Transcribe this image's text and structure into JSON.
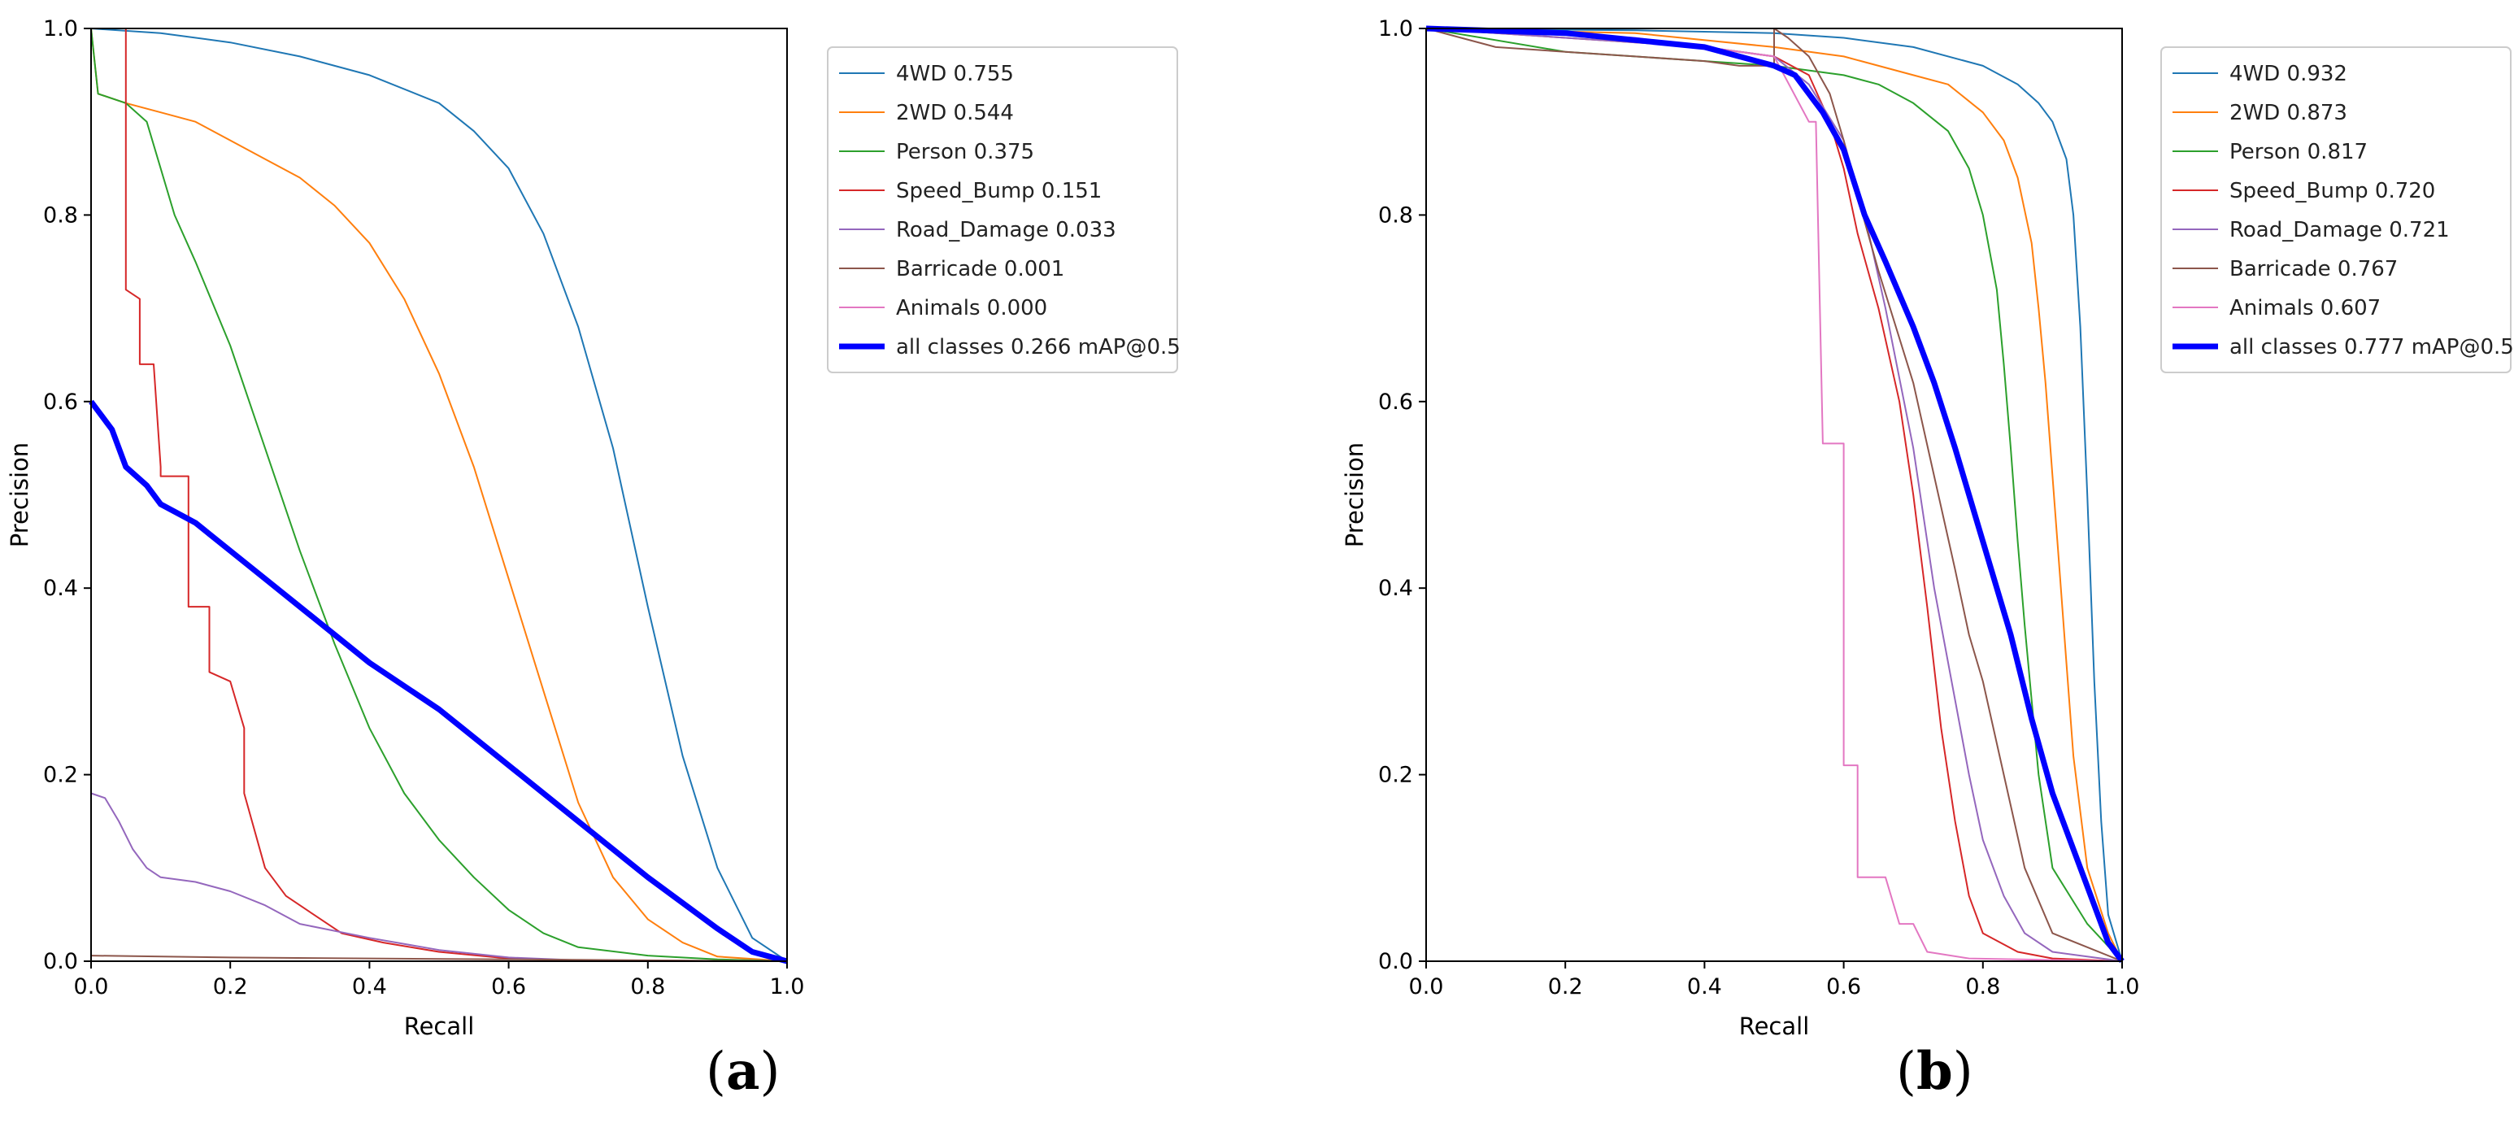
{
  "figure_labels": {
    "a": "a",
    "b": "b"
  },
  "colors": {
    "4WD": "#1f77b4",
    "2WD": "#ff7f0e",
    "Person": "#2ca02c",
    "Speed_Bump": "#d62728",
    "Road_Damage": "#9467bd",
    "Barricade": "#8c564b",
    "Animals": "#e377c2",
    "all": "#0000ff"
  },
  "chart_data": [
    {
      "type": "line",
      "panel": "a",
      "xlabel": "Recall",
      "ylabel": "Precision",
      "xlim": [
        0,
        1
      ],
      "ylim": [
        0,
        1
      ],
      "ticks": [
        "0.0",
        "0.2",
        "0.4",
        "0.6",
        "0.8",
        "1.0"
      ],
      "tick_values": [
        0,
        0.2,
        0.4,
        0.6,
        0.8,
        1.0
      ],
      "legend_position": "outside-right",
      "series": [
        {
          "key": "4WD",
          "name": "4WD 0.755",
          "x": [
            0,
            0.1,
            0.2,
            0.3,
            0.4,
            0.5,
            0.55,
            0.6,
            0.65,
            0.7,
            0.75,
            0.8,
            0.85,
            0.9,
            0.95,
            1.0
          ],
          "y": [
            1.0,
            0.995,
            0.985,
            0.97,
            0.95,
            0.92,
            0.89,
            0.85,
            0.78,
            0.68,
            0.55,
            0.38,
            0.22,
            0.1,
            0.025,
            0.0
          ]
        },
        {
          "key": "2WD",
          "name": "2WD 0.544",
          "x": [
            0,
            0.01,
            0.05,
            0.1,
            0.15,
            0.2,
            0.25,
            0.3,
            0.35,
            0.4,
            0.45,
            0.5,
            0.55,
            0.6,
            0.65,
            0.7,
            0.75,
            0.8,
            0.85,
            0.9,
            1.0
          ],
          "y": [
            1.0,
            0.93,
            0.92,
            0.91,
            0.9,
            0.88,
            0.86,
            0.84,
            0.81,
            0.77,
            0.71,
            0.63,
            0.53,
            0.41,
            0.29,
            0.17,
            0.09,
            0.045,
            0.02,
            0.005,
            0.0
          ]
        },
        {
          "key": "Person",
          "name": "Person 0.375",
          "x": [
            0,
            0.01,
            0.05,
            0.08,
            0.12,
            0.15,
            0.2,
            0.25,
            0.3,
            0.35,
            0.4,
            0.45,
            0.5,
            0.55,
            0.6,
            0.65,
            0.7,
            0.8,
            0.9,
            1.0
          ],
          "y": [
            1.0,
            0.93,
            0.92,
            0.9,
            0.8,
            0.75,
            0.66,
            0.55,
            0.44,
            0.34,
            0.25,
            0.18,
            0.13,
            0.09,
            0.055,
            0.03,
            0.015,
            0.006,
            0.002,
            0.0
          ]
        },
        {
          "key": "Speed_Bump",
          "name": "Speed_Bump 0.151",
          "x": [
            0.05,
            0.05,
            0.07,
            0.07,
            0.09,
            0.1,
            0.1,
            0.14,
            0.14,
            0.17,
            0.17,
            0.2,
            0.22,
            0.22,
            0.25,
            0.28,
            0.32,
            0.36,
            0.42,
            0.5,
            0.6,
            0.7,
            1.0
          ],
          "y": [
            1.0,
            0.72,
            0.71,
            0.64,
            0.64,
            0.53,
            0.52,
            0.52,
            0.38,
            0.38,
            0.31,
            0.3,
            0.25,
            0.18,
            0.1,
            0.07,
            0.05,
            0.03,
            0.02,
            0.01,
            0.003,
            0.001,
            0.0
          ]
        },
        {
          "key": "Road_Damage",
          "name": "Road_Damage 0.033",
          "x": [
            0,
            0.02,
            0.04,
            0.06,
            0.08,
            0.1,
            0.15,
            0.2,
            0.25,
            0.3,
            0.4,
            0.5,
            0.6,
            0.7,
            1.0
          ],
          "y": [
            0.18,
            0.175,
            0.15,
            0.12,
            0.1,
            0.09,
            0.085,
            0.075,
            0.06,
            0.04,
            0.025,
            0.012,
            0.004,
            0.001,
            0.0
          ]
        },
        {
          "key": "Barricade",
          "name": "Barricade 0.001",
          "x": [
            0,
            0.2,
            0.4,
            0.6,
            0.8,
            1.0
          ],
          "y": [
            0.006,
            0.004,
            0.003,
            0.002,
            0.001,
            0.0
          ]
        },
        {
          "key": "Animals",
          "name": "Animals 0.000",
          "x": [
            0,
            1.0
          ],
          "y": [
            0.0,
            0.0
          ]
        },
        {
          "key": "all",
          "name": "all classes 0.266 mAP@0.5",
          "bold": true,
          "x": [
            0,
            0.01,
            0.03,
            0.05,
            0.08,
            0.1,
            0.15,
            0.2,
            0.25,
            0.3,
            0.35,
            0.4,
            0.5,
            0.6,
            0.7,
            0.8,
            0.9,
            0.95,
            1.0
          ],
          "y": [
            0.6,
            0.59,
            0.57,
            0.53,
            0.51,
            0.49,
            0.47,
            0.44,
            0.41,
            0.38,
            0.35,
            0.32,
            0.27,
            0.21,
            0.15,
            0.09,
            0.035,
            0.01,
            0.0
          ]
        }
      ]
    },
    {
      "type": "line",
      "panel": "b",
      "xlabel": "Recall",
      "ylabel": "Precision",
      "xlim": [
        0,
        1
      ],
      "ylim": [
        0,
        1
      ],
      "ticks": [
        "0.0",
        "0.2",
        "0.4",
        "0.6",
        "0.8",
        "1.0"
      ],
      "tick_values": [
        0,
        0.2,
        0.4,
        0.6,
        0.8,
        1.0
      ],
      "legend_position": "outside-right",
      "series": [
        {
          "key": "4WD",
          "name": "4WD 0.932",
          "x": [
            0,
            0.3,
            0.5,
            0.6,
            0.7,
            0.8,
            0.85,
            0.88,
            0.9,
            0.92,
            0.93,
            0.94,
            0.95,
            0.96,
            0.97,
            0.98,
            1.0
          ],
          "y": [
            1.0,
            0.998,
            0.995,
            0.99,
            0.98,
            0.96,
            0.94,
            0.92,
            0.9,
            0.86,
            0.8,
            0.68,
            0.5,
            0.3,
            0.15,
            0.05,
            0.0
          ]
        },
        {
          "key": "2WD",
          "name": "2WD 0.873",
          "x": [
            0,
            0.3,
            0.5,
            0.6,
            0.7,
            0.75,
            0.8,
            0.83,
            0.85,
            0.87,
            0.88,
            0.89,
            0.9,
            0.91,
            0.92,
            0.93,
            0.95,
            0.98,
            1.0
          ],
          "y": [
            1.0,
            0.995,
            0.98,
            0.97,
            0.95,
            0.94,
            0.91,
            0.88,
            0.84,
            0.77,
            0.7,
            0.62,
            0.52,
            0.42,
            0.32,
            0.22,
            0.1,
            0.03,
            0.0
          ]
        },
        {
          "key": "Person",
          "name": "Person 0.817",
          "x": [
            0,
            0.2,
            0.3,
            0.4,
            0.5,
            0.6,
            0.65,
            0.7,
            0.75,
            0.78,
            0.8,
            0.82,
            0.83,
            0.84,
            0.85,
            0.86,
            0.87,
            0.88,
            0.9,
            0.95,
            1.0
          ],
          "y": [
            1.0,
            0.975,
            0.97,
            0.965,
            0.96,
            0.95,
            0.94,
            0.92,
            0.89,
            0.85,
            0.8,
            0.72,
            0.64,
            0.55,
            0.45,
            0.36,
            0.28,
            0.2,
            0.1,
            0.04,
            0.0
          ]
        },
        {
          "key": "Speed_Bump",
          "name": "Speed_Bump 0.720",
          "x": [
            0,
            0.4,
            0.5,
            0.55,
            0.58,
            0.6,
            0.62,
            0.65,
            0.68,
            0.7,
            0.72,
            0.74,
            0.76,
            0.78,
            0.8,
            0.85,
            0.9,
            1.0
          ],
          "y": [
            1.0,
            0.98,
            0.97,
            0.95,
            0.9,
            0.85,
            0.78,
            0.7,
            0.6,
            0.5,
            0.38,
            0.25,
            0.15,
            0.07,
            0.03,
            0.01,
            0.003,
            0.0
          ]
        },
        {
          "key": "Road_Damage",
          "name": "Road_Damage 0.721",
          "x": [
            0,
            0.4,
            0.5,
            0.55,
            0.6,
            0.63,
            0.66,
            0.7,
            0.73,
            0.76,
            0.78,
            0.8,
            0.83,
            0.86,
            0.9,
            1.0
          ],
          "y": [
            1.0,
            0.98,
            0.97,
            0.94,
            0.88,
            0.8,
            0.7,
            0.55,
            0.4,
            0.28,
            0.2,
            0.13,
            0.07,
            0.03,
            0.01,
            0.0
          ]
        },
        {
          "key": "Barricade",
          "name": "Barricade 0.767",
          "x": [
            0,
            0.1,
            0.2,
            0.3,
            0.4,
            0.45,
            0.5,
            0.5,
            0.52,
            0.55,
            0.58,
            0.6,
            0.62,
            0.65,
            0.7,
            0.73,
            0.76,
            0.78,
            0.8,
            0.83,
            0.86,
            0.9,
            1.0
          ],
          "y": [
            1.0,
            0.98,
            0.975,
            0.97,
            0.965,
            0.96,
            0.96,
            1.0,
            0.99,
            0.97,
            0.93,
            0.88,
            0.82,
            0.74,
            0.62,
            0.52,
            0.42,
            0.35,
            0.3,
            0.2,
            0.1,
            0.03,
            0.0
          ]
        },
        {
          "key": "Animals",
          "name": "Animals 0.607",
          "x": [
            0,
            0.3,
            0.5,
            0.55,
            0.56,
            0.57,
            0.6,
            0.6,
            0.62,
            0.62,
            0.66,
            0.68,
            0.7,
            0.72,
            0.78,
            1.0
          ],
          "y": [
            1.0,
            0.99,
            0.97,
            0.9,
            0.9,
            0.555,
            0.555,
            0.21,
            0.21,
            0.09,
            0.09,
            0.04,
            0.04,
            0.01,
            0.003,
            0.0
          ]
        },
        {
          "key": "all",
          "name": "all classes 0.777 mAP@0.5",
          "bold": true,
          "x": [
            0,
            0.2,
            0.4,
            0.5,
            0.53,
            0.55,
            0.57,
            0.6,
            0.63,
            0.66,
            0.7,
            0.73,
            0.76,
            0.8,
            0.84,
            0.87,
            0.9,
            0.93,
            0.96,
            0.98,
            1.0
          ],
          "y": [
            1.0,
            0.995,
            0.98,
            0.96,
            0.95,
            0.93,
            0.91,
            0.87,
            0.8,
            0.75,
            0.68,
            0.62,
            0.55,
            0.45,
            0.35,
            0.26,
            0.18,
            0.12,
            0.06,
            0.02,
            0.0
          ]
        }
      ]
    }
  ]
}
